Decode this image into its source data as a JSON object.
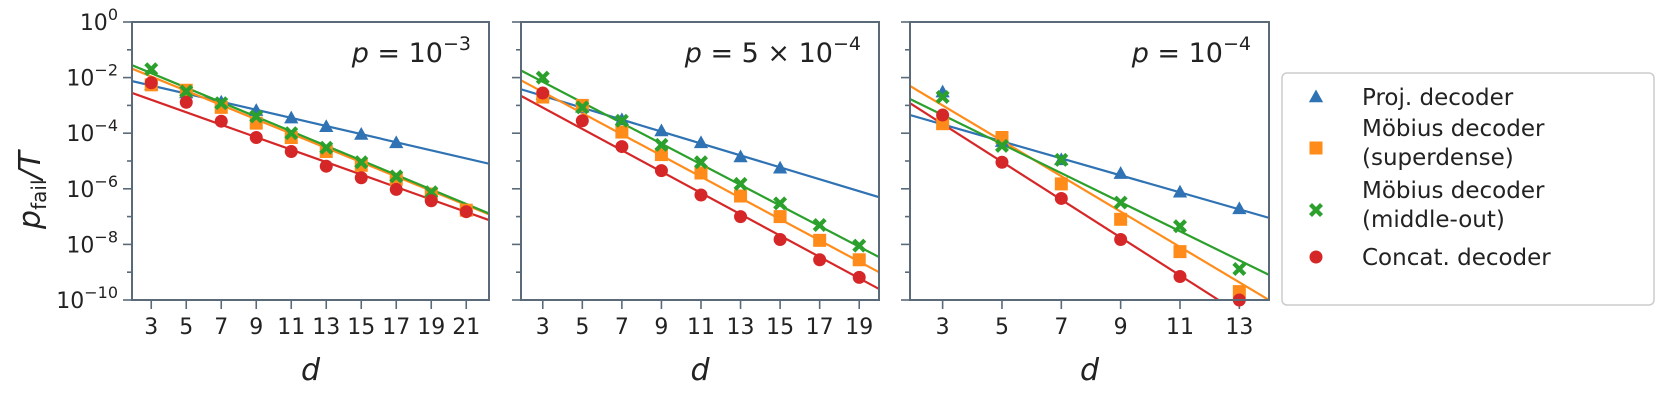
{
  "figure": {
    "ylabel_main": "p",
    "ylabel_sub": "fail",
    "ylabel_tail": "/T"
  },
  "legend": {
    "placement": "right",
    "entries": [
      {
        "lines": [
          "Proj. decoder"
        ],
        "marker": "triangle",
        "color": "#2f73b4"
      },
      {
        "lines": [
          "Möbius decoder",
          "(superdense)"
        ],
        "marker": "square",
        "color": "#ff8c1a"
      },
      {
        "lines": [
          "Möbius decoder",
          "(middle-out)"
        ],
        "marker": "x",
        "color": "#2ca02c"
      },
      {
        "lines": [
          "Concat. decoder"
        ],
        "marker": "circle",
        "color": "#d62728"
      }
    ]
  },
  "colors": {
    "proj": "#2f73b4",
    "superdense": "#ff8c1a",
    "middleout": "#2ca02c",
    "concat": "#d62728",
    "spine": "#5a6a78"
  },
  "chart_data": [
    {
      "type": "scatter",
      "annotation": {
        "lhs": "p",
        "eq": " = ",
        "base": "10",
        "exp": "−3"
      },
      "xlabel": "d",
      "ylabel": "p_fail/T",
      "yscale": "log",
      "ylim": [
        1e-10,
        1
      ],
      "yticks": [
        {
          "base": "10",
          "exp": "0",
          "v": 0
        },
        {
          "base": "10",
          "exp": "−2",
          "v": -2
        },
        {
          "base": "10",
          "exp": "−4",
          "v": -4
        },
        {
          "base": "10",
          "exp": "−6",
          "v": -6
        },
        {
          "base": "10",
          "exp": "−8",
          "v": -8
        },
        {
          "base": "10",
          "exp": "−10",
          "v": -10
        }
      ],
      "xlim": [
        1.9,
        22.3
      ],
      "xticks": [
        "3",
        "5",
        "7",
        "9",
        "11",
        "13",
        "15",
        "17",
        "19",
        "21"
      ],
      "grid": false,
      "series": [
        {
          "key": "proj",
          "marker": "triangle",
          "x": [
            3,
            5,
            7,
            9,
            11,
            13,
            15,
            17
          ],
          "y": [
            0.0055,
            0.0028,
            0.0013,
            0.00065,
            0.00035,
            0.00017,
            9e-05,
            4.5e-05
          ],
          "fit": [
            [
              1.9,
              0.0075
            ],
            [
              22.3,
              8e-06
            ]
          ]
        },
        {
          "key": "superdense",
          "marker": "square",
          "x": [
            3,
            5,
            7,
            9,
            11,
            13,
            15,
            17,
            19,
            21
          ],
          "y": [
            0.0055,
            0.0035,
            0.00085,
            0.00023,
            7e-05,
            2.2e-05,
            7e-06,
            2.2e-06,
            6.5e-07,
            1.7e-07
          ],
          "fit": [
            [
              1.9,
              0.021
            ],
            [
              22.3,
              1.2e-07
            ]
          ]
        },
        {
          "key": "middleout",
          "marker": "x",
          "x": [
            3,
            5,
            7,
            9,
            11,
            13,
            15,
            17,
            19
          ],
          "y": [
            0.02,
            0.0032,
            0.0012,
            0.0004,
            0.0001,
            3e-05,
            9e-06,
            2.8e-06,
            7.5e-07
          ],
          "fit": [
            [
              1.9,
              0.028
            ],
            [
              22.3,
              1.3e-07
            ]
          ]
        },
        {
          "key": "concat",
          "marker": "circle",
          "x": [
            3,
            5,
            7,
            9,
            11,
            13,
            15,
            17,
            19,
            21
          ],
          "y": [
            0.0065,
            0.0013,
            0.00027,
            7e-05,
            2.2e-05,
            6.5e-06,
            2.5e-06,
            9.5e-07,
            3.7e-07,
            1.5e-07
          ],
          "fit": [
            [
              1.9,
              0.0028
            ],
            [
              22.3,
              7.5e-08
            ]
          ]
        }
      ]
    },
    {
      "type": "scatter",
      "annotation": {
        "lhs": "p",
        "eq": " = 5 × ",
        "base": "10",
        "exp": "−4"
      },
      "xlabel": "d",
      "ylabel": "p_fail/T",
      "yscale": "log",
      "ylim": [
        1e-10,
        1
      ],
      "xlim": [
        1.9,
        20.0
      ],
      "xticks": [
        "3",
        "5",
        "7",
        "9",
        "11",
        "13",
        "15",
        "17",
        "19"
      ],
      "grid": false,
      "series": [
        {
          "key": "proj",
          "marker": "triangle",
          "x": [
            3,
            5,
            7,
            9,
            11,
            13,
            15
          ],
          "y": [
            0.0025,
            0.00085,
            0.0003,
            0.00012,
            4.5e-05,
            1.4e-05,
            5.5e-06
          ],
          "fit": [
            [
              1.9,
              0.0038
            ],
            [
              20.0,
              5e-07
            ]
          ]
        },
        {
          "key": "superdense",
          "marker": "square",
          "x": [
            3,
            5,
            7,
            9,
            11,
            13,
            15,
            17,
            19
          ],
          "y": [
            0.002,
            0.001,
            0.00011,
            1.7e-05,
            3.7e-06,
            5.5e-07,
            1e-07,
            1.4e-08,
            2.8e-09
          ],
          "fit": [
            [
              1.9,
              0.008
            ],
            [
              20.0,
              1e-09
            ]
          ]
        },
        {
          "key": "middleout",
          "marker": "x",
          "x": [
            3,
            5,
            7,
            9,
            11,
            13,
            15,
            17,
            19
          ],
          "y": [
            0.01,
            0.00085,
            0.00028,
            3.8e-05,
            9e-06,
            1.5e-06,
            3e-07,
            5e-08,
            9e-09
          ],
          "fit": [
            [
              1.9,
              0.018
            ],
            [
              20.0,
              3.5e-09
            ]
          ]
        },
        {
          "key": "concat",
          "marker": "circle",
          "x": [
            3,
            5,
            7,
            9,
            11,
            13,
            15,
            17,
            19
          ],
          "y": [
            0.0028,
            0.00028,
            3.3e-05,
            4.5e-06,
            6e-07,
            1e-07,
            1.5e-08,
            2.8e-09,
            6.5e-10
          ],
          "fit": [
            [
              1.9,
              0.0022
            ],
            [
              20.0,
              2.5e-10
            ]
          ]
        }
      ]
    },
    {
      "type": "scatter",
      "annotation": {
        "lhs": "p",
        "eq": " = ",
        "base": "10",
        "exp": "−4"
      },
      "xlabel": "d",
      "ylabel": "p_fail/T",
      "yscale": "log",
      "ylim": [
        1e-10,
        1
      ],
      "xlim": [
        1.9,
        14.0
      ],
      "xticks": [
        "3",
        "5",
        "7",
        "9",
        "11",
        "13"
      ],
      "grid": false,
      "series": [
        {
          "key": "proj",
          "marker": "triangle",
          "x": [
            3,
            5,
            7,
            9,
            11,
            13
          ],
          "y": [
            0.003,
            5e-05,
            1.1e-05,
            3.5e-06,
            7.5e-07,
            1.9e-07
          ],
          "fit": [
            [
              1.9,
              0.00045
            ],
            [
              14.0,
              9e-08
            ]
          ]
        },
        {
          "key": "superdense",
          "marker": "square",
          "x": [
            3,
            5,
            7,
            9,
            11,
            13
          ],
          "y": [
            0.00022,
            7e-05,
            1.5e-06,
            8e-08,
            5.5e-09,
            2e-10
          ],
          "fit": [
            [
              1.9,
              0.005
            ],
            [
              14.0,
              1e-10
            ]
          ]
        },
        {
          "key": "middleout",
          "marker": "x",
          "x": [
            3,
            5,
            7,
            9,
            11,
            13
          ],
          "y": [
            0.002,
            3.5e-05,
            1.1e-05,
            3.2e-07,
            4.5e-08,
            1.3e-09
          ],
          "fit": [
            [
              1.9,
              0.0017
            ],
            [
              14.0,
              8e-10
            ]
          ]
        },
        {
          "key": "concat",
          "marker": "circle",
          "x": [
            3,
            5,
            7,
            9,
            11,
            13
          ],
          "y": [
            0.00045,
            9e-06,
            4.5e-07,
            1.5e-08,
            7e-10,
            1e-10
          ],
          "fit": [
            [
              1.9,
              0.0012
            ],
            [
              12.3,
              1e-10
            ]
          ]
        }
      ]
    }
  ]
}
